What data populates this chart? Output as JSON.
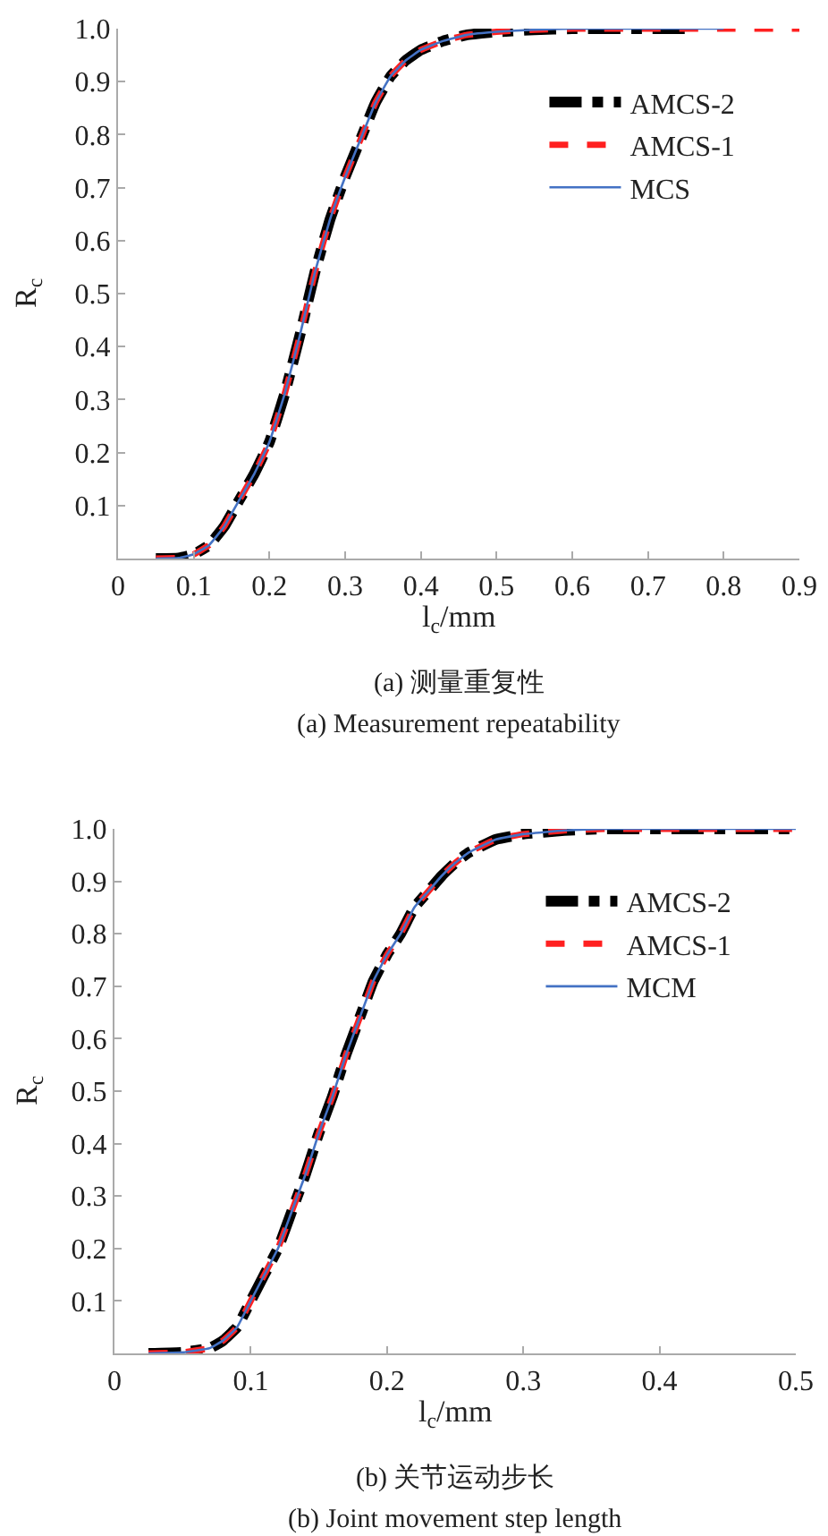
{
  "chart_data": [
    {
      "type": "line",
      "xlabel": "l$_{c}$/mm",
      "ylabel": "R$_{c}$",
      "annotations": [
        "(a) 测量重复性",
        "(a) Measurement repeatability"
      ],
      "xlim": [
        0,
        0.9
      ],
      "ylim": [
        0,
        1
      ],
      "xticks": [
        {
          "value": 0,
          "label": "0"
        },
        0.1,
        0.2,
        0.3,
        0.4,
        0.5,
        0.6,
        0.7,
        0.8,
        0.9
      ],
      "yticks": [
        0.1,
        0.2,
        0.3,
        0.4,
        0.5,
        0.6,
        0.7,
        0.8,
        0.9,
        {
          "value": 1,
          "label": "1.0"
        }
      ],
      "grid": false,
      "legend": "right",
      "marker": "none",
      "series": [
        {
          "name": "MCS",
          "color": "#4472c4",
          "line_style": "solid",
          "x": [
            0.05,
            0.08,
            0.1,
            0.12,
            0.14,
            0.16,
            0.18,
            0.2,
            0.22,
            0.24,
            0.26,
            0.28,
            0.3,
            0.32,
            0.34,
            0.36,
            0.38,
            0.4,
            0.43,
            0.46,
            0.5,
            0.55,
            0.6,
            0.7,
            0.8
          ],
          "values": [
            0,
            0.001,
            0.008,
            0.025,
            0.06,
            0.11,
            0.16,
            0.22,
            0.31,
            0.42,
            0.54,
            0.64,
            0.72,
            0.79,
            0.86,
            0.91,
            0.94,
            0.96,
            0.977,
            0.988,
            0.994,
            0.998,
            1,
            1,
            1
          ]
        },
        {
          "name": "AMCS-1",
          "color": "#ff2020",
          "line_style": "dashed",
          "x": [
            0.05,
            0.08,
            0.1,
            0.12,
            0.14,
            0.16,
            0.18,
            0.2,
            0.22,
            0.24,
            0.26,
            0.28,
            0.3,
            0.32,
            0.34,
            0.36,
            0.38,
            0.4,
            0.43,
            0.46,
            0.5,
            0.55,
            0.6,
            0.7,
            0.8,
            0.9
          ],
          "values": [
            0,
            0.001,
            0.008,
            0.025,
            0.06,
            0.11,
            0.16,
            0.22,
            0.31,
            0.42,
            0.54,
            0.64,
            0.72,
            0.79,
            0.86,
            0.91,
            0.94,
            0.96,
            0.977,
            0.988,
            0.994,
            0.998,
            1,
            1,
            1,
            1
          ]
        },
        {
          "name": "AMCS-2",
          "color": "#000000",
          "line_style": "dashed",
          "x": [
            0.05,
            0.08,
            0.1,
            0.12,
            0.14,
            0.16,
            0.18,
            0.2,
            0.22,
            0.24,
            0.26,
            0.28,
            0.3,
            0.32,
            0.34,
            0.36,
            0.38,
            0.4,
            0.43,
            0.46,
            0.5,
            0.55,
            0.6,
            0.7,
            0.76
          ],
          "values": [
            0,
            0.001,
            0.008,
            0.025,
            0.06,
            0.11,
            0.16,
            0.22,
            0.31,
            0.42,
            0.54,
            0.64,
            0.72,
            0.79,
            0.86,
            0.91,
            0.94,
            0.96,
            0.977,
            0.988,
            0.994,
            0.998,
            1,
            1,
            1
          ]
        }
      ]
    },
    {
      "type": "line",
      "xlabel": "l$_{c}$/mm",
      "ylabel": "R$_{c}$",
      "annotations": [
        "(b) 关节运动步长",
        "(b) Joint movement step length"
      ],
      "xlim": [
        0,
        0.5
      ],
      "ylim": [
        0,
        1
      ],
      "xticks": [
        {
          "value": 0,
          "label": "0"
        },
        0.1,
        0.2,
        0.3,
        0.4,
        0.5
      ],
      "yticks": [
        0.1,
        0.2,
        0.3,
        0.4,
        0.5,
        0.6,
        0.7,
        0.8,
        0.9,
        {
          "value": 1,
          "label": "1.0"
        }
      ],
      "grid": false,
      "legend": "right",
      "marker": "none",
      "series": [
        {
          "name": "MCM",
          "color": "#4472c4",
          "line_style": "solid",
          "x": [
            0.025,
            0.05,
            0.07,
            0.08,
            0.09,
            0.1,
            0.11,
            0.12,
            0.13,
            0.14,
            0.15,
            0.16,
            0.17,
            0.18,
            0.19,
            0.2,
            0.21,
            0.22,
            0.23,
            0.24,
            0.25,
            0.26,
            0.28,
            0.3,
            0.33,
            0.36,
            0.4,
            0.45,
            0.5
          ],
          "values": [
            0,
            0.002,
            0.01,
            0.025,
            0.05,
            0.1,
            0.15,
            0.2,
            0.27,
            0.34,
            0.42,
            0.49,
            0.57,
            0.64,
            0.71,
            0.76,
            0.8,
            0.85,
            0.88,
            0.91,
            0.935,
            0.955,
            0.98,
            0.99,
            0.997,
            1,
            1,
            1,
            1
          ]
        },
        {
          "name": "AMCS-1",
          "color": "#ff2020",
          "line_style": "dashed",
          "x": [
            0.025,
            0.05,
            0.07,
            0.08,
            0.09,
            0.1,
            0.11,
            0.12,
            0.13,
            0.14,
            0.15,
            0.16,
            0.17,
            0.18,
            0.19,
            0.2,
            0.21,
            0.22,
            0.23,
            0.24,
            0.25,
            0.26,
            0.28,
            0.3,
            0.33,
            0.36,
            0.4,
            0.45,
            0.5
          ],
          "values": [
            0,
            0.002,
            0.01,
            0.025,
            0.05,
            0.1,
            0.15,
            0.2,
            0.27,
            0.34,
            0.42,
            0.49,
            0.57,
            0.64,
            0.71,
            0.76,
            0.8,
            0.85,
            0.88,
            0.91,
            0.935,
            0.955,
            0.98,
            0.99,
            0.997,
            1,
            1,
            1,
            1
          ]
        },
        {
          "name": "AMCS-2",
          "color": "#000000",
          "line_style": "dashed",
          "x": [
            0.025,
            0.05,
            0.07,
            0.08,
            0.09,
            0.1,
            0.11,
            0.12,
            0.13,
            0.14,
            0.15,
            0.16,
            0.17,
            0.18,
            0.19,
            0.2,
            0.21,
            0.22,
            0.23,
            0.24,
            0.25,
            0.26,
            0.28,
            0.3,
            0.33,
            0.36,
            0.4,
            0.45,
            0.5
          ],
          "values": [
            0,
            0.002,
            0.01,
            0.025,
            0.05,
            0.1,
            0.15,
            0.2,
            0.27,
            0.34,
            0.42,
            0.49,
            0.57,
            0.64,
            0.71,
            0.76,
            0.8,
            0.85,
            0.88,
            0.91,
            0.935,
            0.955,
            0.98,
            0.99,
            0.997,
            1,
            1,
            1,
            1
          ]
        }
      ]
    }
  ]
}
